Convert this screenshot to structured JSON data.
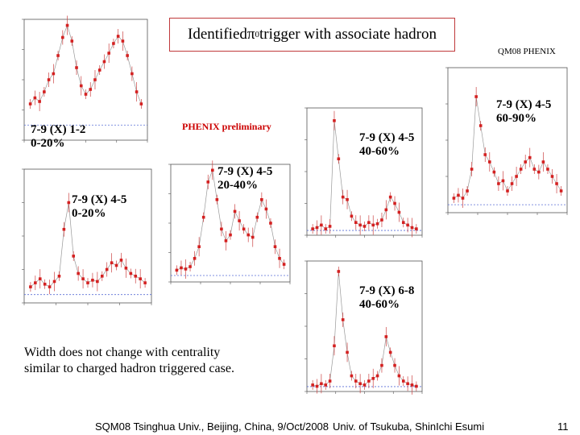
{
  "slide": {
    "title_prefix": "Identified ",
    "title_symbol": "π",
    "title_sup": "0",
    "title_suffix": " trigger with associate hadron",
    "conference": "QM08 PHENIX",
    "preliminary": "PHENIX preliminary",
    "note_line1": "Width does not change with centrality",
    "note_line2": "similar to charged hadron triggered case.",
    "footer_left": "SQM08 Tsinghua Univ., Beijing, China, 9/Oct/2008",
    "footer_center": "Univ. of Tsukuba, ShinIchi Esumi",
    "footer_right": "11"
  },
  "panel_labels": {
    "p1": "7-9 (X) 1-2\n0-20%",
    "p2": "7-9 (X) 4-5\n0-20%",
    "p3": "7-9 (X) 4-5\n20-40%",
    "p4": "7-9 (X) 4-5\n40-60%",
    "p5": "7-9 (X) 6-8\n40-60%",
    "p6": "7-9 (X) 4-5\n60-90%"
  },
  "chart_data": [
    {
      "id": "p1",
      "type": "scatter",
      "xlim": [
        -4,
        4
      ],
      "ylim": [
        0,
        1
      ],
      "x": [
        -3.6,
        -3.3,
        -3,
        -2.7,
        -2.4,
        -2.1,
        -1.8,
        -1.5,
        -1.2,
        -0.9,
        -0.6,
        -0.3,
        0,
        0.3,
        0.6,
        0.9,
        1.2,
        1.5,
        1.8,
        2.1,
        2.4,
        2.7,
        3,
        3.3,
        3.6
      ],
      "y": [
        0.3,
        0.35,
        0.32,
        0.4,
        0.5,
        0.55,
        0.7,
        0.85,
        0.95,
        0.82,
        0.6,
        0.45,
        0.38,
        0.42,
        0.5,
        0.58,
        0.65,
        0.72,
        0.8,
        0.86,
        0.82,
        0.7,
        0.55,
        0.4,
        0.3
      ]
    },
    {
      "id": "p2",
      "type": "scatter",
      "xlim": [
        -4,
        4
      ],
      "ylim": [
        0,
        1
      ],
      "x": [
        -3.6,
        -3.3,
        -3,
        -2.7,
        -2.4,
        -2.1,
        -1.8,
        -1.5,
        -1.2,
        -0.9,
        -0.6,
        -0.3,
        0,
        0.3,
        0.6,
        0.9,
        1.2,
        1.5,
        1.8,
        2.1,
        2.4,
        2.7,
        3,
        3.3,
        3.6
      ],
      "y": [
        0.12,
        0.15,
        0.18,
        0.14,
        0.12,
        0.16,
        0.2,
        0.55,
        0.75,
        0.35,
        0.22,
        0.18,
        0.15,
        0.17,
        0.16,
        0.2,
        0.25,
        0.3,
        0.28,
        0.32,
        0.26,
        0.22,
        0.2,
        0.18,
        0.15
      ]
    },
    {
      "id": "p3",
      "type": "scatter",
      "xlim": [
        -4,
        4
      ],
      "ylim": [
        0,
        1
      ],
      "x": [
        -3.6,
        -3.3,
        -3,
        -2.7,
        -2.4,
        -2.1,
        -1.8,
        -1.5,
        -1.2,
        -0.9,
        -0.6,
        -0.3,
        0,
        0.3,
        0.6,
        0.9,
        1.2,
        1.5,
        1.8,
        2.1,
        2.4,
        2.7,
        3,
        3.3,
        3.6
      ],
      "y": [
        0.1,
        0.12,
        0.11,
        0.13,
        0.2,
        0.3,
        0.55,
        0.85,
        0.95,
        0.7,
        0.45,
        0.35,
        0.4,
        0.6,
        0.52,
        0.45,
        0.4,
        0.38,
        0.55,
        0.7,
        0.62,
        0.5,
        0.3,
        0.2,
        0.15
      ]
    },
    {
      "id": "p4",
      "type": "scatter",
      "xlim": [
        -4,
        4
      ],
      "ylim": [
        0,
        1
      ],
      "x": [
        -3.6,
        -3.3,
        -3,
        -2.7,
        -2.4,
        -2.1,
        -1.8,
        -1.5,
        -1.2,
        -0.9,
        -0.6,
        -0.3,
        0,
        0.3,
        0.6,
        0.9,
        1.2,
        1.5,
        1.8,
        2.1,
        2.4,
        2.7,
        3,
        3.3,
        3.6
      ],
      "y": [
        0.05,
        0.06,
        0.08,
        0.05,
        0.07,
        0.9,
        0.6,
        0.3,
        0.28,
        0.15,
        0.1,
        0.08,
        0.07,
        0.1,
        0.08,
        0.09,
        0.12,
        0.2,
        0.3,
        0.25,
        0.18,
        0.1,
        0.08,
        0.06,
        0.05
      ]
    },
    {
      "id": "p5",
      "type": "scatter",
      "xlim": [
        -4,
        4
      ],
      "ylim": [
        0,
        1
      ],
      "x": [
        -3.6,
        -3.3,
        -3,
        -2.7,
        -2.4,
        -2.1,
        -1.8,
        -1.5,
        -1.2,
        -0.9,
        -0.6,
        -0.3,
        0,
        0.3,
        0.6,
        0.9,
        1.2,
        1.5,
        1.8,
        2.1,
        2.4,
        2.7,
        3,
        3.3,
        3.6
      ],
      "y": [
        0.05,
        0.04,
        0.06,
        0.05,
        0.08,
        0.35,
        0.92,
        0.55,
        0.3,
        0.12,
        0.08,
        0.06,
        0.05,
        0.08,
        0.1,
        0.12,
        0.2,
        0.42,
        0.3,
        0.2,
        0.12,
        0.08,
        0.06,
        0.05,
        0.04
      ]
    },
    {
      "id": "p6",
      "type": "scatter",
      "xlim": [
        -4,
        4
      ],
      "ylim": [
        0,
        1
      ],
      "x": [
        -3.6,
        -3.3,
        -3,
        -2.7,
        -2.4,
        -2.1,
        -1.8,
        -1.5,
        -1.2,
        -0.9,
        -0.6,
        -0.3,
        0,
        0.3,
        0.6,
        0.9,
        1.2,
        1.5,
        1.8,
        2.1,
        2.4,
        2.7,
        3,
        3.3,
        3.6
      ],
      "y": [
        0.1,
        0.12,
        0.1,
        0.15,
        0.3,
        0.8,
        0.6,
        0.4,
        0.35,
        0.28,
        0.2,
        0.22,
        0.15,
        0.2,
        0.25,
        0.3,
        0.35,
        0.38,
        0.3,
        0.28,
        0.35,
        0.3,
        0.25,
        0.2,
        0.15
      ]
    }
  ]
}
